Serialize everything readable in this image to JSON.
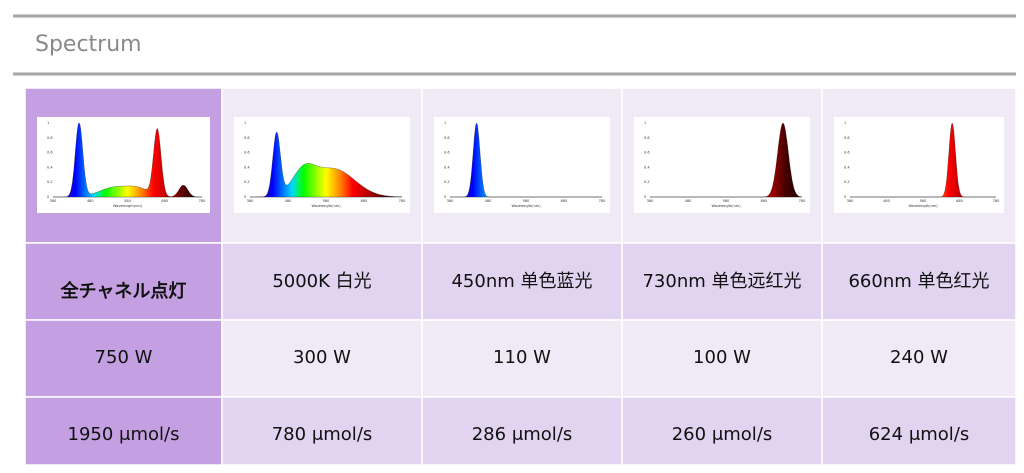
{
  "header": {
    "title": "Spectrum"
  },
  "spectrum_axis": {
    "yticks": [
      "0",
      "0.2",
      "0.4",
      "0.6",
      "0.8",
      "1"
    ],
    "xticks": [
      "380",
      "480",
      "580",
      "680",
      "780"
    ],
    "xlabel": "Wavelength(nm)"
  },
  "table": {
    "columns": [
      {
        "label": "全チャネル点灯",
        "power": "750 W",
        "flux": "1950 μmol/s"
      },
      {
        "label": "5000K 白光",
        "power": "300 W",
        "flux": "780 μmol/s"
      },
      {
        "label": "450nm 单色蓝光",
        "power": "110 W",
        "flux": "286 μmol/s"
      },
      {
        "label": "730nm 单色远红光",
        "power": "100 W",
        "flux": "260 μmol/s"
      },
      {
        "label": "660nm 单色红光",
        "power": "240 W",
        "flux": "624 μmol/s"
      }
    ]
  }
}
